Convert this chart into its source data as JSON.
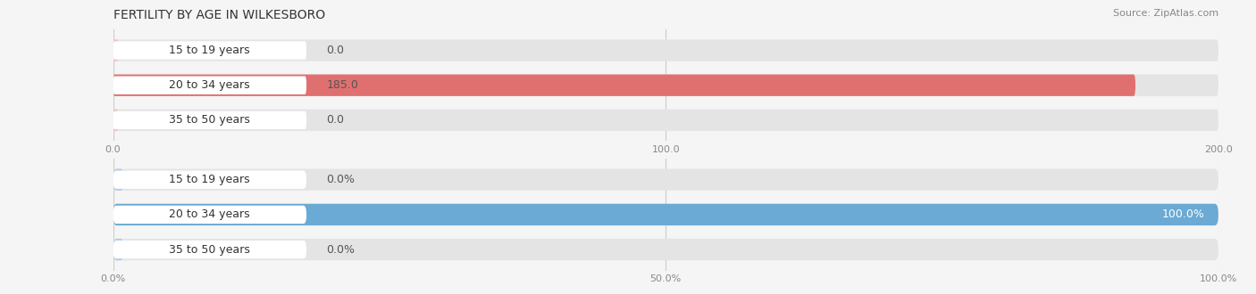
{
  "title": "FERTILITY BY AGE IN WILKESBORO",
  "source": "Source: ZipAtlas.com",
  "top_chart": {
    "categories": [
      "15 to 19 years",
      "20 to 34 years",
      "35 to 50 years"
    ],
    "values": [
      0.0,
      185.0,
      0.0
    ],
    "xlim": [
      0,
      200
    ],
    "xticks": [
      0.0,
      100.0,
      200.0
    ],
    "bar_color_full": "#e07070",
    "bar_color_empty": "#f0c0c0",
    "label_inside_color": "#ffffff",
    "label_outside_color": "#555555"
  },
  "bottom_chart": {
    "categories": [
      "15 to 19 years",
      "20 to 34 years",
      "35 to 50 years"
    ],
    "values": [
      0.0,
      100.0,
      0.0
    ],
    "xlim": [
      0,
      100
    ],
    "xticks": [
      0.0,
      50.0,
      100.0
    ],
    "bar_color_full": "#6aaad4",
    "bar_color_empty": "#b0cce8",
    "label_inside_color": "#ffffff",
    "label_outside_color": "#555555"
  },
  "bg_color": "#f5f5f5",
  "bar_bg_color": "#e4e4e4",
  "label_bg_color": "#ffffff",
  "title_color": "#333333",
  "source_color": "#888888",
  "tick_color": "#888888",
  "grid_color": "#cccccc",
  "bar_height": 0.62,
  "label_fontsize": 9,
  "tick_fontsize": 8,
  "title_fontsize": 10,
  "source_fontsize": 8
}
